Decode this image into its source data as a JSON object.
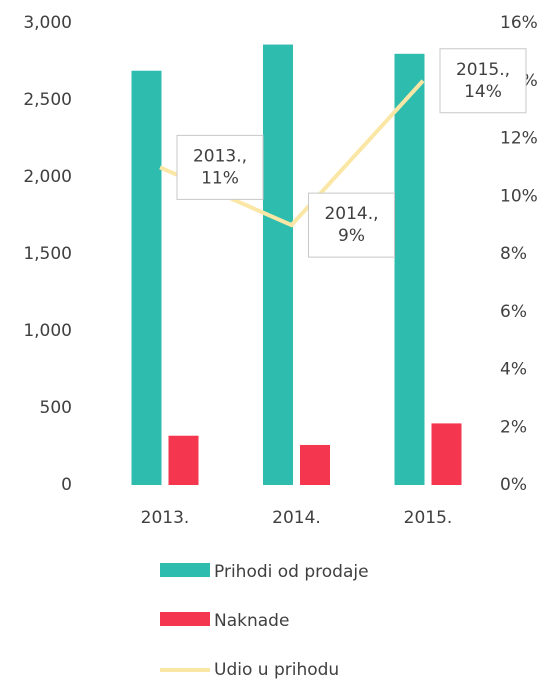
{
  "chart_data": {
    "type": "bar_line",
    "categories": [
      "2013.",
      "2014.",
      "2015."
    ],
    "series": [
      {
        "name": "Prihodi od prodaje",
        "color": "#2ebcae",
        "type": "bar",
        "values": [
          2690,
          2860,
          2800
        ]
      },
      {
        "name": "Naknade",
        "color": "#f4364f",
        "type": "bar",
        "values": [
          320,
          260,
          400
        ]
      },
      {
        "name": "Udio u prihodu",
        "color": "#fbe7a5",
        "type": "line",
        "axis": "y2",
        "values": [
          11,
          9,
          14
        ],
        "value_labels": [
          "11%",
          "9%",
          "14%"
        ]
      }
    ],
    "ylim": [
      0,
      3000
    ],
    "yticks": [
      0,
      500,
      {
        "value": 1000,
        "label": "1,000"
      },
      {
        "value": 1500,
        "label": "1,500"
      },
      {
        "value": 2000,
        "label": "2,000"
      },
      {
        "value": 2500,
        "label": "2,500"
      },
      {
        "value": 3000,
        "label": "3,000"
      }
    ],
    "y2lim": [
      0,
      16
    ],
    "y2ticks": [
      {
        "value": 0,
        "label": "0%"
      },
      {
        "value": 2,
        "label": "2%"
      },
      {
        "value": 4,
        "label": "4%"
      },
      {
        "value": 6,
        "label": "6%"
      },
      {
        "value": 8,
        "label": "8%"
      },
      {
        "value": 10,
        "label": "10%"
      },
      {
        "value": 12,
        "label": "12%"
      },
      {
        "value": 14,
        "label": "14%"
      },
      {
        "value": 16,
        "label": "16%"
      }
    ],
    "legend": "bottom"
  }
}
